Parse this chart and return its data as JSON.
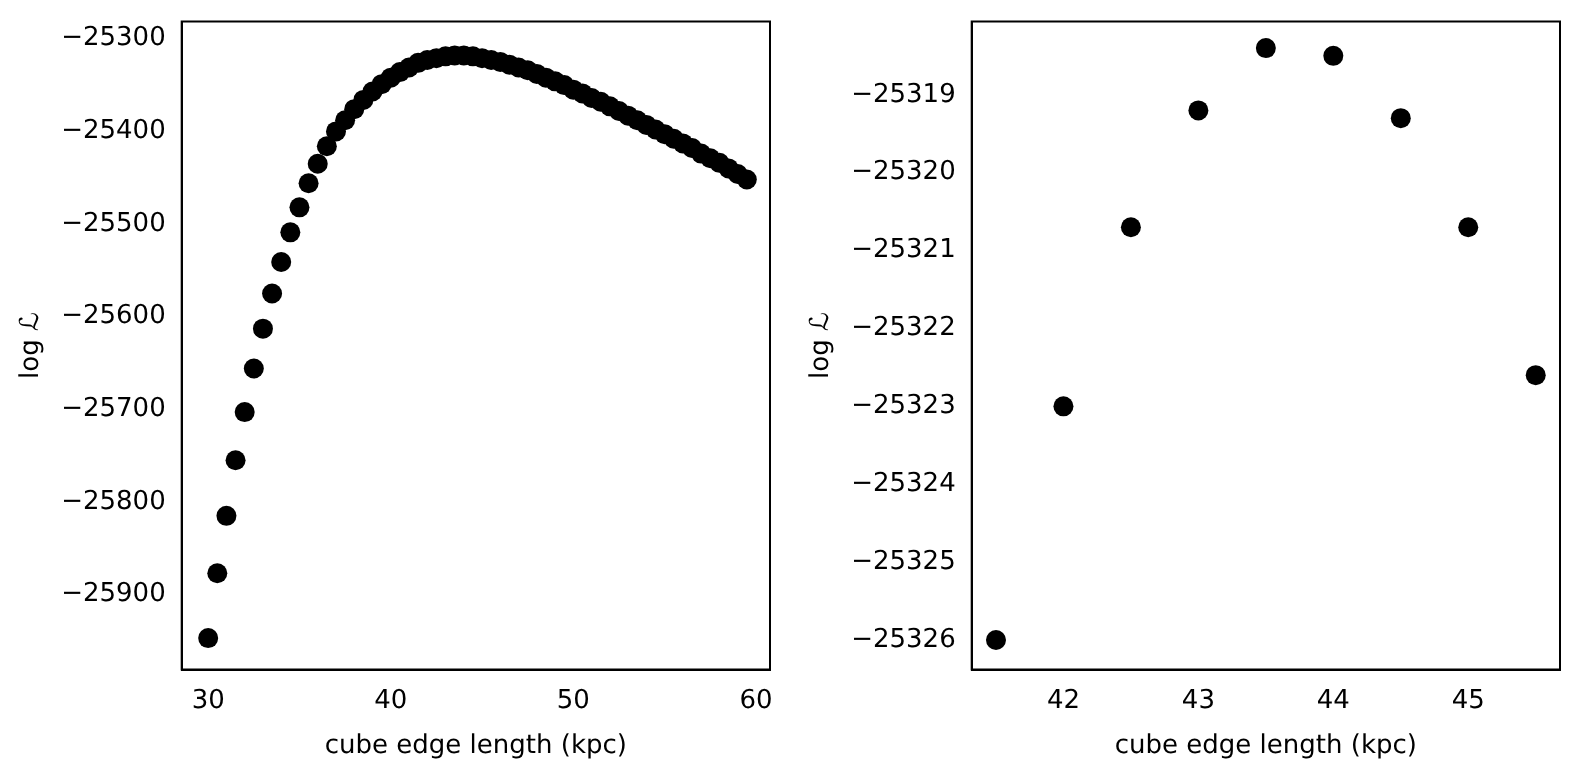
{
  "chart_data": [
    {
      "type": "scatter",
      "xlabel": "cube edge length (kpc)",
      "ylabel": "log ℒ",
      "marker": "circle",
      "xlim": [
        28.55,
        60.77
      ],
      "xticks": [
        30,
        40,
        50,
        60
      ],
      "ylim": [
        -25981,
        -25281.5
      ],
      "yticks": [
        -25900,
        -25800,
        -25700,
        -25600,
        -25500,
        -25400,
        -25300
      ],
      "series": [
        {
          "color": "#000000",
          "x": [
            30,
            30.5,
            31,
            31.5,
            32,
            32.5,
            33,
            33.5,
            34,
            34.5,
            35,
            35.5,
            36,
            36.5,
            37,
            37.5,
            38,
            38.5,
            39,
            39.5,
            40,
            40.5,
            41,
            41.5,
            42,
            42.5,
            43,
            43.5,
            44,
            44.5,
            45,
            45.5,
            46,
            46.5,
            47,
            47.5,
            48,
            48.5,
            49,
            49.5,
            50,
            50.5,
            51,
            51.5,
            52,
            52.5,
            53,
            53.5,
            54,
            54.5,
            55,
            55.5,
            56,
            56.5,
            57,
            57.5,
            58,
            58.5,
            59,
            59.5
          ],
          "values": [
            -25947,
            -25877,
            -25815,
            -25755,
            -25703,
            -25656,
            -25613,
            -25575,
            -25541,
            -25509,
            -25482,
            -25456,
            -25435,
            -25416,
            -25400,
            -25388,
            -25376,
            -25366,
            -25357,
            -25349,
            -25342,
            -25336,
            -25331,
            -25326,
            -25323,
            -25321,
            -25319,
            -25318,
            -25318,
            -25319,
            -25321,
            -25323,
            -25325,
            -25328,
            -25331,
            -25334,
            -25338,
            -25342,
            -25346,
            -25350,
            -25355,
            -25359,
            -25364,
            -25368,
            -25373,
            -25378,
            -25383,
            -25388,
            -25393,
            -25398,
            -25403,
            -25408,
            -25413,
            -25418,
            -25424,
            -25429,
            -25434,
            -25440,
            -25446,
            -25452
          ]
        }
      ]
    },
    {
      "type": "scatter",
      "xlabel": "cube edge length (kpc)",
      "ylabel": "log ℒ",
      "marker": "circle",
      "xlim": [
        41.32,
        45.68
      ],
      "xticks": [
        42,
        43,
        44,
        45
      ],
      "ylim": [
        -25326.38,
        -25318.06
      ],
      "yticks": [
        -25326,
        -25325,
        -25324,
        -25323,
        -25322,
        -25321,
        -25320,
        -25319
      ],
      "series": [
        {
          "color": "#000000",
          "x": [
            41.5,
            42,
            42.5,
            43,
            43.5,
            44,
            44.5,
            45,
            45.5
          ],
          "values": [
            -25326.0,
            -25323.0,
            -25320.7,
            -25319.2,
            -25318.4,
            -25318.5,
            -25319.3,
            -25320.7,
            -25322.6
          ]
        }
      ]
    }
  ]
}
